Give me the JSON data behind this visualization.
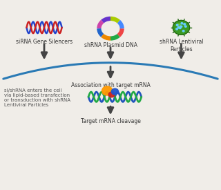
{
  "bg_color": "#f0ede8",
  "labels": {
    "sirna": "siRNA Gene Silencers",
    "shrna_plasmid": "shRNA Plasmid DNA",
    "shrna_lentiviral": "shRNA Lentiviral\nParticles",
    "association": "Association with target mRNA",
    "cell_entry": "si/shRNA enters the cell\nvia lipid-based transfection\nor transduction with shRNA\nLentiviral Particles",
    "cleavage": "Target mRNA cleavage"
  },
  "label_fontsize": 5.5,
  "arrow_color": "#444444",
  "curve_color": "#2a7ab5",
  "dna_colors": {
    "strand1": "#cc2222",
    "strand2": "#2244cc"
  },
  "plasmid_colors": [
    "#6633cc",
    "#cc44aa",
    "#2266cc",
    "#ee8800",
    "#22aa44",
    "#ee4444",
    "#4488ff",
    "#aacc00"
  ],
  "lentiviral_color": "#3a9922",
  "lentiviral_dot_color": "#66ccff",
  "mrna_top_color": "#22aa44",
  "mrna_bottom_color": "#2255bb",
  "protein_colors": [
    "#ff9900",
    "#cc2222",
    "#2255cc"
  ]
}
